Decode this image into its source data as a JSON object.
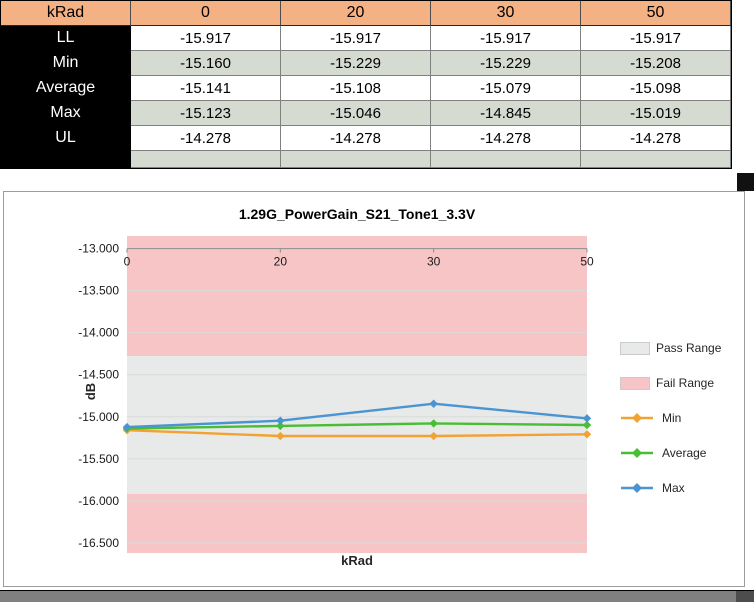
{
  "table": {
    "header": {
      "label": "kRad",
      "cols": [
        "0",
        "20",
        "30",
        "50"
      ]
    },
    "rows": [
      {
        "label": "LL",
        "values": [
          "-15.917",
          "-15.917",
          "-15.917",
          "-15.917"
        ]
      },
      {
        "label": "Min",
        "values": [
          "-15.160",
          "-15.229",
          "-15.229",
          "-15.208"
        ]
      },
      {
        "label": "Average",
        "values": [
          "-15.141",
          "-15.108",
          "-15.079",
          "-15.098"
        ]
      },
      {
        "label": "Max",
        "values": [
          "-15.123",
          "-15.046",
          "-14.845",
          "-15.019"
        ]
      },
      {
        "label": "UL",
        "values": [
          "-14.278",
          "-14.278",
          "-14.278",
          "-14.278"
        ]
      }
    ],
    "colors": {
      "header_bg": "#F4B183",
      "label_bg": "#000000",
      "label_text": "#FFFFFF",
      "row_alt_bg": "#D6DBD2"
    }
  },
  "chart_data": {
    "type": "line",
    "title": "1.29G_PowerGain_S21_Tone1_3.3V",
    "xlabel": "kRad",
    "ylabel": "dB",
    "categories": [
      "0",
      "20",
      "30",
      "50"
    ],
    "series": [
      {
        "name": "Min",
        "color": "#F2A233",
        "values": [
          -15.16,
          -15.229,
          -15.229,
          -15.208
        ]
      },
      {
        "name": "Average",
        "color": "#49BE35",
        "values": [
          -15.141,
          -15.108,
          -15.079,
          -15.098
        ]
      },
      {
        "name": "Max",
        "color": "#4B94D2",
        "values": [
          -15.123,
          -15.046,
          -14.845,
          -15.019
        ]
      }
    ],
    "pass_range": {
      "label": "Pass Range",
      "from": -15.917,
      "to": -14.278,
      "color": "#E7EAE9"
    },
    "fail_range": {
      "label": "Fail Range",
      "color": "#F7C5C5"
    },
    "ylim": [
      -12.85,
      -16.62
    ],
    "yticks": [
      -13.0,
      -13.5,
      -14.0,
      -14.5,
      -15.0,
      -15.5,
      -16.0,
      -16.5
    ],
    "ytick_labels": [
      "-13.000",
      "-13.500",
      "-14.000",
      "-14.500",
      "-15.000",
      "-15.500",
      "-16.000",
      "-16.500"
    ],
    "legend": [
      "Pass Range",
      "Fail Range",
      "Min",
      "Average",
      "Max"
    ],
    "legend_position": "right",
    "grid": true,
    "marker": "diamond"
  }
}
